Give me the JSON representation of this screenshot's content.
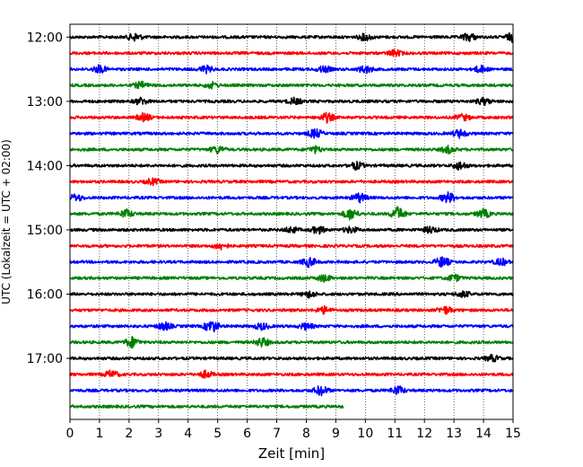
{
  "chart_data": {
    "type": "line",
    "title": "",
    "xlabel": "Zeit  [min]",
    "ylabel": "UTC (Lokalzeit = UTC + 02:00)",
    "xlim": [
      0,
      15
    ],
    "x_ticks": [
      0,
      1,
      2,
      3,
      4,
      5,
      6,
      7,
      8,
      9,
      10,
      11,
      12,
      13,
      14,
      15
    ],
    "y_ticks": [
      {
        "label": "12:00",
        "hour": 12.0
      },
      {
        "label": "13:00",
        "hour": 13.0
      },
      {
        "label": "14:00",
        "hour": 14.0
      },
      {
        "label": "15:00",
        "hour": 15.0
      },
      {
        "label": "16:00",
        "hour": 16.0
      },
      {
        "label": "17:00",
        "hour": 17.0
      }
    ],
    "ylim_hours": [
      11.8,
      17.95
    ],
    "grid": "vertical-dotted",
    "trace_colors": [
      "#000000",
      "#ff0000",
      "#0000ff",
      "#008000"
    ],
    "traces": [
      {
        "start": "12:00",
        "end_min": 15,
        "events": [
          [
            2.2,
            1.3
          ],
          [
            10.0,
            1.2
          ],
          [
            13.5,
            1.4
          ],
          [
            15.0,
            1.6
          ]
        ]
      },
      {
        "start": "12:15",
        "end_min": 15,
        "events": [
          [
            11.0,
            1.1
          ]
        ]
      },
      {
        "start": "12:30",
        "end_min": 15,
        "events": [
          [
            1.0,
            1.3
          ],
          [
            4.6,
            1.2
          ],
          [
            8.6,
            1.1
          ],
          [
            10.0,
            1.3
          ],
          [
            13.9,
            1.2
          ]
        ]
      },
      {
        "start": "12:45",
        "end_min": 15,
        "events": [
          [
            2.4,
            1.1
          ],
          [
            4.8,
            1.0
          ]
        ]
      },
      {
        "start": "13:00",
        "end_min": 15,
        "events": [
          [
            2.4,
            1.2
          ],
          [
            7.6,
            1.1
          ],
          [
            14.0,
            1.2
          ]
        ]
      },
      {
        "start": "13:15",
        "end_min": 15,
        "events": [
          [
            2.5,
            1.3
          ],
          [
            8.7,
            1.6
          ],
          [
            13.3,
            1.1
          ]
        ]
      },
      {
        "start": "13:30",
        "end_min": 15,
        "events": [
          [
            8.3,
            1.6
          ],
          [
            13.2,
            1.4
          ]
        ]
      },
      {
        "start": "13:45",
        "end_min": 15,
        "events": [
          [
            5.0,
            1.3
          ],
          [
            8.3,
            1.1
          ],
          [
            12.8,
            1.2
          ]
        ]
      },
      {
        "start": "14:00",
        "end_min": 15,
        "events": [
          [
            9.7,
            1.3
          ],
          [
            13.2,
            1.4
          ]
        ]
      },
      {
        "start": "14:15",
        "end_min": 15,
        "events": [
          [
            2.8,
            1.0
          ]
        ]
      },
      {
        "start": "14:30",
        "end_min": 15,
        "events": [
          [
            0.2,
            1.2
          ],
          [
            9.8,
            1.6
          ],
          [
            12.8,
            1.8
          ]
        ]
      },
      {
        "start": "14:45",
        "end_min": 15,
        "events": [
          [
            1.9,
            1.4
          ],
          [
            9.5,
            2.0
          ],
          [
            11.1,
            2.4
          ],
          [
            14.0,
            1.5
          ]
        ]
      },
      {
        "start": "15:00",
        "end_min": 15,
        "events": [
          [
            7.5,
            1.0
          ],
          [
            8.4,
            1.3
          ],
          [
            9.5,
            1.1
          ],
          [
            12.2,
            1.1
          ]
        ]
      },
      {
        "start": "15:15",
        "end_min": 15,
        "events": [
          [
            5.1,
            1.2
          ]
        ]
      },
      {
        "start": "15:30",
        "end_min": 15,
        "events": [
          [
            8.1,
            1.6
          ],
          [
            12.6,
            1.8
          ],
          [
            14.6,
            1.2
          ]
        ]
      },
      {
        "start": "15:45",
        "end_min": 15,
        "events": [
          [
            8.6,
            1.1
          ],
          [
            13.0,
            1.2
          ]
        ]
      },
      {
        "start": "16:00",
        "end_min": 15,
        "events": [
          [
            8.1,
            1.1
          ],
          [
            13.3,
            1.1
          ]
        ]
      },
      {
        "start": "16:15",
        "end_min": 15,
        "events": [
          [
            8.6,
            1.2
          ],
          [
            12.7,
            1.3
          ]
        ]
      },
      {
        "start": "16:30",
        "end_min": 15,
        "events": [
          [
            3.2,
            1.4
          ],
          [
            4.8,
            2.2
          ],
          [
            6.5,
            1.2
          ],
          [
            8.0,
            1.1
          ]
        ]
      },
      {
        "start": "16:45",
        "end_min": 15,
        "events": [
          [
            2.1,
            1.8
          ],
          [
            6.5,
            1.6
          ]
        ]
      },
      {
        "start": "17:00",
        "end_min": 15,
        "events": [
          [
            14.3,
            1.1
          ]
        ]
      },
      {
        "start": "17:15",
        "end_min": 15,
        "events": [
          [
            1.4,
            1.3
          ],
          [
            4.6,
            1.2
          ]
        ]
      },
      {
        "start": "17:30",
        "end_min": 15,
        "events": [
          [
            8.5,
            1.7
          ],
          [
            11.1,
            1.5
          ]
        ]
      },
      {
        "start": "17:45",
        "end_min": 9.25,
        "events": []
      }
    ]
  }
}
